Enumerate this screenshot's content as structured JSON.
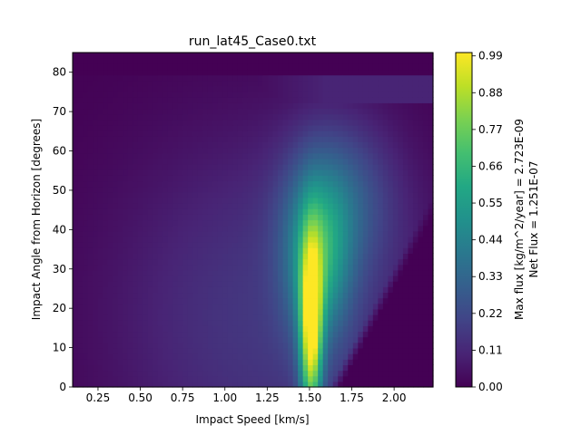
{
  "chart_data": {
    "type": "heatmap",
    "title": "run_lat45_Case0.txt",
    "xlabel": "Impact Speed [km/s]",
    "ylabel": "Impact Angle from Horizon [degrees]",
    "xlim": [
      0.1,
      2.23
    ],
    "ylim": [
      0,
      85
    ],
    "x_ticks": [
      "0.25",
      "0.50",
      "0.75",
      "1.00",
      "1.25",
      "1.50",
      "1.75",
      "2.00"
    ],
    "x_tick_values": [
      0.25,
      0.5,
      0.75,
      1.0,
      1.25,
      1.5,
      1.75,
      2.0
    ],
    "y_ticks": [
      "0",
      "10",
      "20",
      "30",
      "40",
      "50",
      "60",
      "70",
      "80"
    ],
    "y_tick_values": [
      0,
      10,
      20,
      30,
      40,
      50,
      60,
      70,
      80
    ],
    "colorbar": {
      "colormap": "viridis",
      "range": [
        0.0,
        1.0
      ],
      "ticks": [
        "0.00",
        "0.11",
        "0.22",
        "0.33",
        "0.44",
        "0.55",
        "0.66",
        "0.77",
        "0.88",
        "0.99"
      ],
      "tick_values": [
        0.0,
        0.11,
        0.22,
        0.33,
        0.44,
        0.55,
        0.66,
        0.77,
        0.88,
        0.99
      ],
      "label_line1": "Max flux [kg/m^2/year] = 2.723E-09",
      "label_line2": "Net Flux = 1.251E-07"
    },
    "peak": {
      "x": 1.51,
      "y": 12,
      "value": 1.0
    },
    "grid": false
  }
}
